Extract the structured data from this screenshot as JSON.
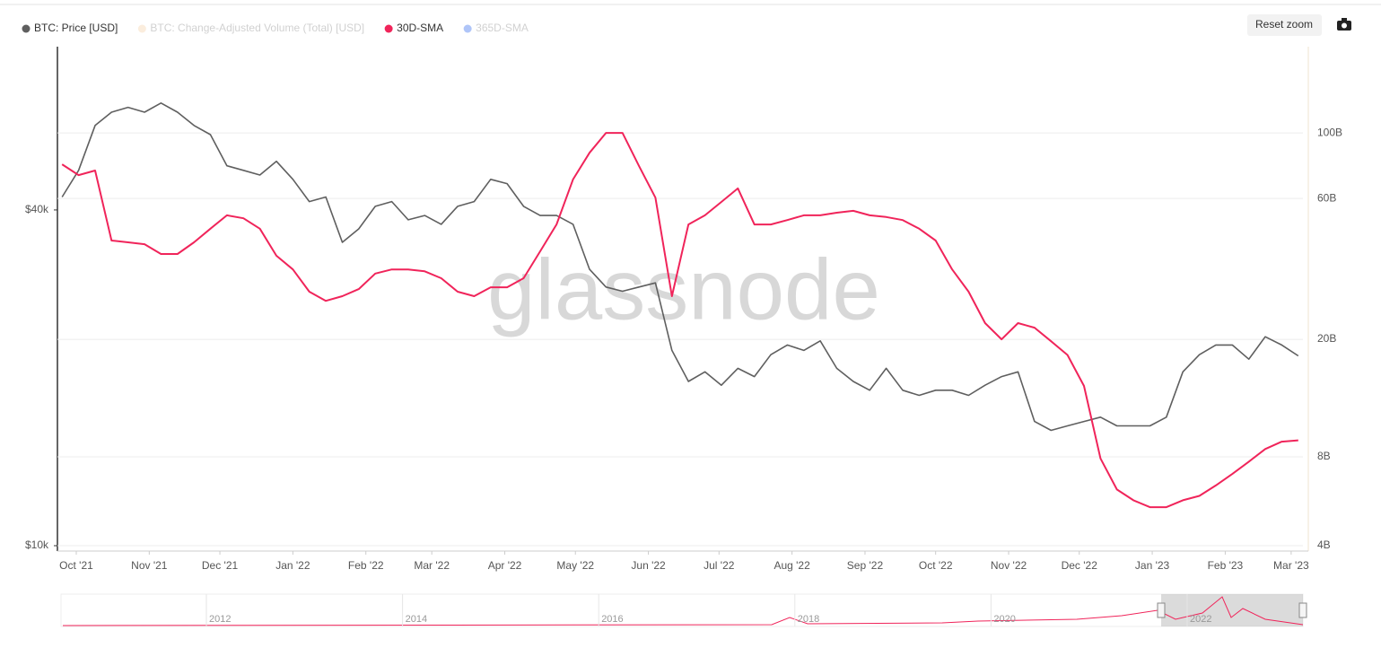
{
  "chart_data": {
    "type": "line",
    "watermark": "glassnode",
    "reset_button": "Reset zoom",
    "x": [
      -6,
      1,
      8,
      15,
      22,
      29,
      36,
      43,
      50,
      57,
      64,
      71,
      78,
      85,
      92,
      99,
      106,
      113,
      120,
      127,
      134,
      141,
      148,
      155,
      162,
      169,
      176,
      183,
      190,
      197,
      204,
      211,
      218,
      225,
      232,
      239,
      246,
      253,
      260,
      267,
      274,
      281,
      288,
      295,
      302,
      309,
      316,
      323,
      330,
      337,
      344,
      351,
      358,
      365,
      372,
      379,
      386,
      393,
      400,
      407,
      414,
      421,
      428,
      435,
      442,
      449,
      456,
      463,
      470,
      477,
      484,
      491,
      498,
      505,
      512,
      519
    ],
    "xlim": [
      -8,
      521
    ],
    "xticks": [
      {
        "value": 0,
        "label": "Oct '21"
      },
      {
        "value": 31,
        "label": "Nov '21"
      },
      {
        "value": 61,
        "label": "Dec '21"
      },
      {
        "value": 92,
        "label": "Jan '22"
      },
      {
        "value": 123,
        "label": "Feb '22"
      },
      {
        "value": 151,
        "label": "Mar '22"
      },
      {
        "value": 182,
        "label": "Apr '22"
      },
      {
        "value": 212,
        "label": "May '22"
      },
      {
        "value": 243,
        "label": "Jun '22"
      },
      {
        "value": 273,
        "label": "Jul '22"
      },
      {
        "value": 304,
        "label": "Aug '22"
      },
      {
        "value": 335,
        "label": "Sep '22"
      },
      {
        "value": 365,
        "label": "Oct '22"
      },
      {
        "value": 396,
        "label": "Nov '22"
      },
      {
        "value": 426,
        "label": "Dec '22"
      },
      {
        "value": 457,
        "label": "Jan '23"
      },
      {
        "value": 488,
        "label": "Feb '23"
      },
      {
        "value": 516,
        "label": "Mar '23"
      }
    ],
    "ylim": [
      10000,
      78500
    ],
    "yticks": [
      {
        "value": 10000,
        "label": "$10k"
      },
      {
        "value": 40000,
        "label": "$40k"
      }
    ],
    "y_log": true,
    "y2lim": [
      4,
      196
    ],
    "y2ticks": [
      {
        "value": 4,
        "label": "4B"
      },
      {
        "value": 8,
        "label": "8B"
      },
      {
        "value": 20,
        "label": "20B"
      },
      {
        "value": 60,
        "label": "60B"
      },
      {
        "value": 100,
        "label": "100B"
      }
    ],
    "y2_log": true,
    "grid": true,
    "series": [
      {
        "name": "BTC: Price [USD]",
        "color": "#5f5f5f",
        "values": [
          42200,
          47100,
          56700,
          59900,
          61100,
          59900,
          62200,
          59900,
          56700,
          54600,
          48000,
          47100,
          46200,
          48900,
          45400,
          41400,
          42200,
          35000,
          37000,
          40600,
          41400,
          38400,
          39100,
          37700,
          40600,
          41400,
          45400,
          44600,
          40600,
          39100,
          39100,
          37700,
          31300,
          29100,
          28600,
          29100,
          29600,
          22400,
          19700,
          20500,
          19400,
          20800,
          20100,
          22000,
          22900,
          22400,
          23300,
          20800,
          19700,
          19000,
          20800,
          19000,
          18600,
          19000,
          19000,
          18600,
          19400,
          20100,
          20500,
          16700,
          16100,
          16400,
          16700,
          17000,
          16400,
          16400,
          16400,
          17000,
          20500,
          22000,
          22900,
          22900,
          21600,
          23700,
          22900,
          21900
        ]
      },
      {
        "name": "30D-SMA",
        "color": "#f0245a",
        "axis": "y2",
        "values": [
          78.3,
          72.0,
          74.6,
          43.2,
          42.6,
          42.0,
          38.9,
          38.9,
          42.6,
          47.4,
          52.6,
          51.4,
          47.4,
          38.4,
          34.5,
          29.0,
          27.0,
          28.0,
          29.6,
          33.4,
          34.5,
          34.5,
          34.0,
          32.2,
          29.0,
          28.0,
          30.0,
          30.0,
          32.2,
          39.7,
          49.0,
          69.6,
          85.7,
          100,
          100,
          77.3,
          60.4,
          28.0,
          49.0,
          52.6,
          58.4,
          64.9,
          49.0,
          49.0,
          50.7,
          52.6,
          52.6,
          53.7,
          54.5,
          52.6,
          51.9,
          50.7,
          47.4,
          43.2,
          34.5,
          29.0,
          22.7,
          20.0,
          22.7,
          21.9,
          19.7,
          17.7,
          13.9,
          7.9,
          6.2,
          5.7,
          5.4,
          5.4,
          5.7,
          5.9,
          6.4,
          7.0,
          7.7,
          8.5,
          9.0,
          9.1
        ]
      }
    ],
    "hidden_series": [
      {
        "name": "BTC: Change-Adjusted Volume (Total) [USD]",
        "color": "#f7d9b5"
      },
      {
        "name": "365D-SMA",
        "color": "#4f7ff0"
      }
    ],
    "navigator_labels": [
      "2012",
      "2014",
      "2016",
      "2018",
      "2020",
      "2022"
    ]
  }
}
